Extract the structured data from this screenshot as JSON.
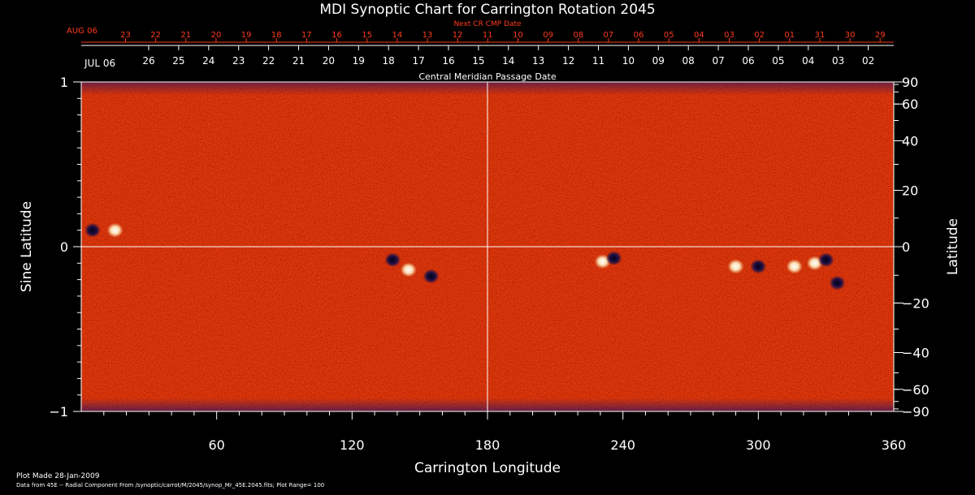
{
  "chart_data": {
    "type": "heatmap",
    "title": "MDI Synoptic Chart for Carrington Rotation 2045",
    "xlabel": "Carrington Longitude",
    "ylabel_left": "Sine Latitude",
    "ylabel_right": "Latitude",
    "xlim": [
      0,
      360
    ],
    "ylim": [
      -1,
      1
    ],
    "x_ticks": [
      60,
      120,
      180,
      240,
      300,
      360
    ],
    "y_ticks_left": [
      {
        "value": 1,
        "label": "1"
      },
      {
        "value": 0,
        "label": "0"
      },
      {
        "value": -1,
        "label": "−1"
      }
    ],
    "right_ticks": [
      {
        "deg": 90,
        "label": "90"
      },
      {
        "deg": 60,
        "label": "60"
      },
      {
        "deg": 40,
        "label": "40"
      },
      {
        "deg": 20,
        "label": "20"
      },
      {
        "deg": 0,
        "label": "0"
      },
      {
        "deg": -20,
        "label": "−20"
      },
      {
        "deg": -40,
        "label": "−40"
      },
      {
        "deg": -60,
        "label": "−60"
      },
      {
        "deg": -90,
        "label": "−90"
      }
    ],
    "reference_lines": {
      "longitude": 180,
      "sine_latitude": 0
    },
    "grid": false,
    "colorscale": [
      "#0a0f55",
      "#b31e00",
      "#ff5a00",
      "#ffd890",
      "#ffffff"
    ],
    "regions": [
      {
        "lon": 5,
        "sinlat": 0.1,
        "polarity": "negative"
      },
      {
        "lon": 15,
        "sinlat": 0.1,
        "polarity": "positive"
      },
      {
        "lon": 138,
        "sinlat": -0.08,
        "polarity": "negative"
      },
      {
        "lon": 145,
        "sinlat": -0.14,
        "polarity": "positive"
      },
      {
        "lon": 155,
        "sinlat": -0.18,
        "polarity": "negative"
      },
      {
        "lon": 231,
        "sinlat": -0.09,
        "polarity": "positive"
      },
      {
        "lon": 236,
        "sinlat": -0.07,
        "polarity": "negative"
      },
      {
        "lon": 290,
        "sinlat": -0.12,
        "polarity": "positive"
      },
      {
        "lon": 300,
        "sinlat": -0.12,
        "polarity": "negative"
      },
      {
        "lon": 316,
        "sinlat": -0.12,
        "polarity": "positive"
      },
      {
        "lon": 325,
        "sinlat": -0.1,
        "polarity": "positive"
      },
      {
        "lon": 330,
        "sinlat": -0.08,
        "polarity": "negative"
      },
      {
        "lon": 335,
        "sinlat": -0.22,
        "polarity": "negative"
      }
    ]
  },
  "top_axes": {
    "next_cr_label": "Next CR CMP Date",
    "next_month": "AUG 06",
    "next_days": [
      "23",
      "22",
      "21",
      "20",
      "19",
      "18",
      "17",
      "16",
      "15",
      "14",
      "13",
      "12",
      "11",
      "10",
      "09",
      "08",
      "07",
      "06",
      "05",
      "04",
      "03",
      "02",
      "01",
      "31",
      "30",
      "29"
    ],
    "cmp_label": "Central Meridian Passage Date",
    "cmp_month": "JUL 06",
    "cmp_days": [
      "26",
      "25",
      "24",
      "23",
      "22",
      "21",
      "20",
      "19",
      "18",
      "17",
      "16",
      "15",
      "14",
      "13",
      "12",
      "11",
      "10",
      "09",
      "08",
      "07",
      "06",
      "05",
      "04",
      "03",
      "02"
    ]
  },
  "footer": {
    "plot_made": "Plot Made 28-Jan-2009",
    "source": "Data from 45E -- Radial Component From /synoptic/carrot/M/2045/synop_Mr_45E.2045.fits; Plot Range= 100"
  }
}
